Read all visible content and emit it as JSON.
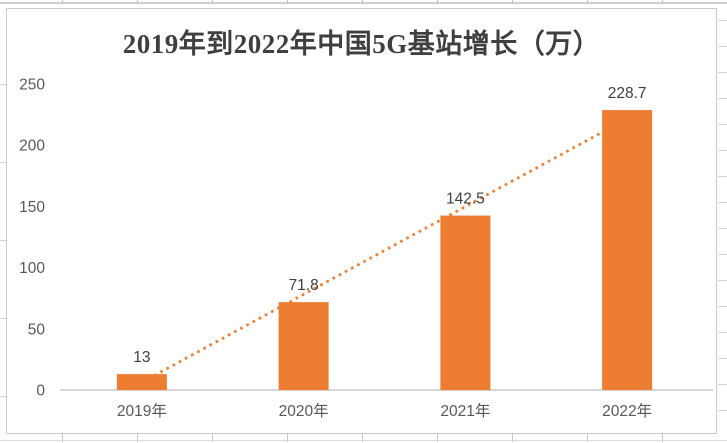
{
  "chart_data": {
    "type": "bar",
    "title": "2019年到2022年中国5G基站增长（万）",
    "categories": [
      "2019年",
      "2020年",
      "2021年",
      "2022年"
    ],
    "values": [
      13,
      71.8,
      142.5,
      228.7
    ],
    "data_labels": [
      "13",
      "71.8",
      "142.5",
      "228.7"
    ],
    "xlabel": "",
    "ylabel": "",
    "ylim": [
      0,
      250
    ],
    "y_ticks": [
      0,
      50,
      100,
      150,
      200,
      250
    ],
    "grid": false,
    "legend": "none",
    "bar_color": "#ED7D31",
    "trendline": {
      "type": "linear",
      "style": "dotted",
      "color": "#ED7D31"
    },
    "title_color": "#3F3F3F",
    "tick_label_color": "#595959",
    "data_label_color": "#404040",
    "axis_line_color": "#D6D6D6",
    "chart_border_color": "#C9C9C9",
    "spreadsheet_gridline_color": "#CDCDCD"
  }
}
